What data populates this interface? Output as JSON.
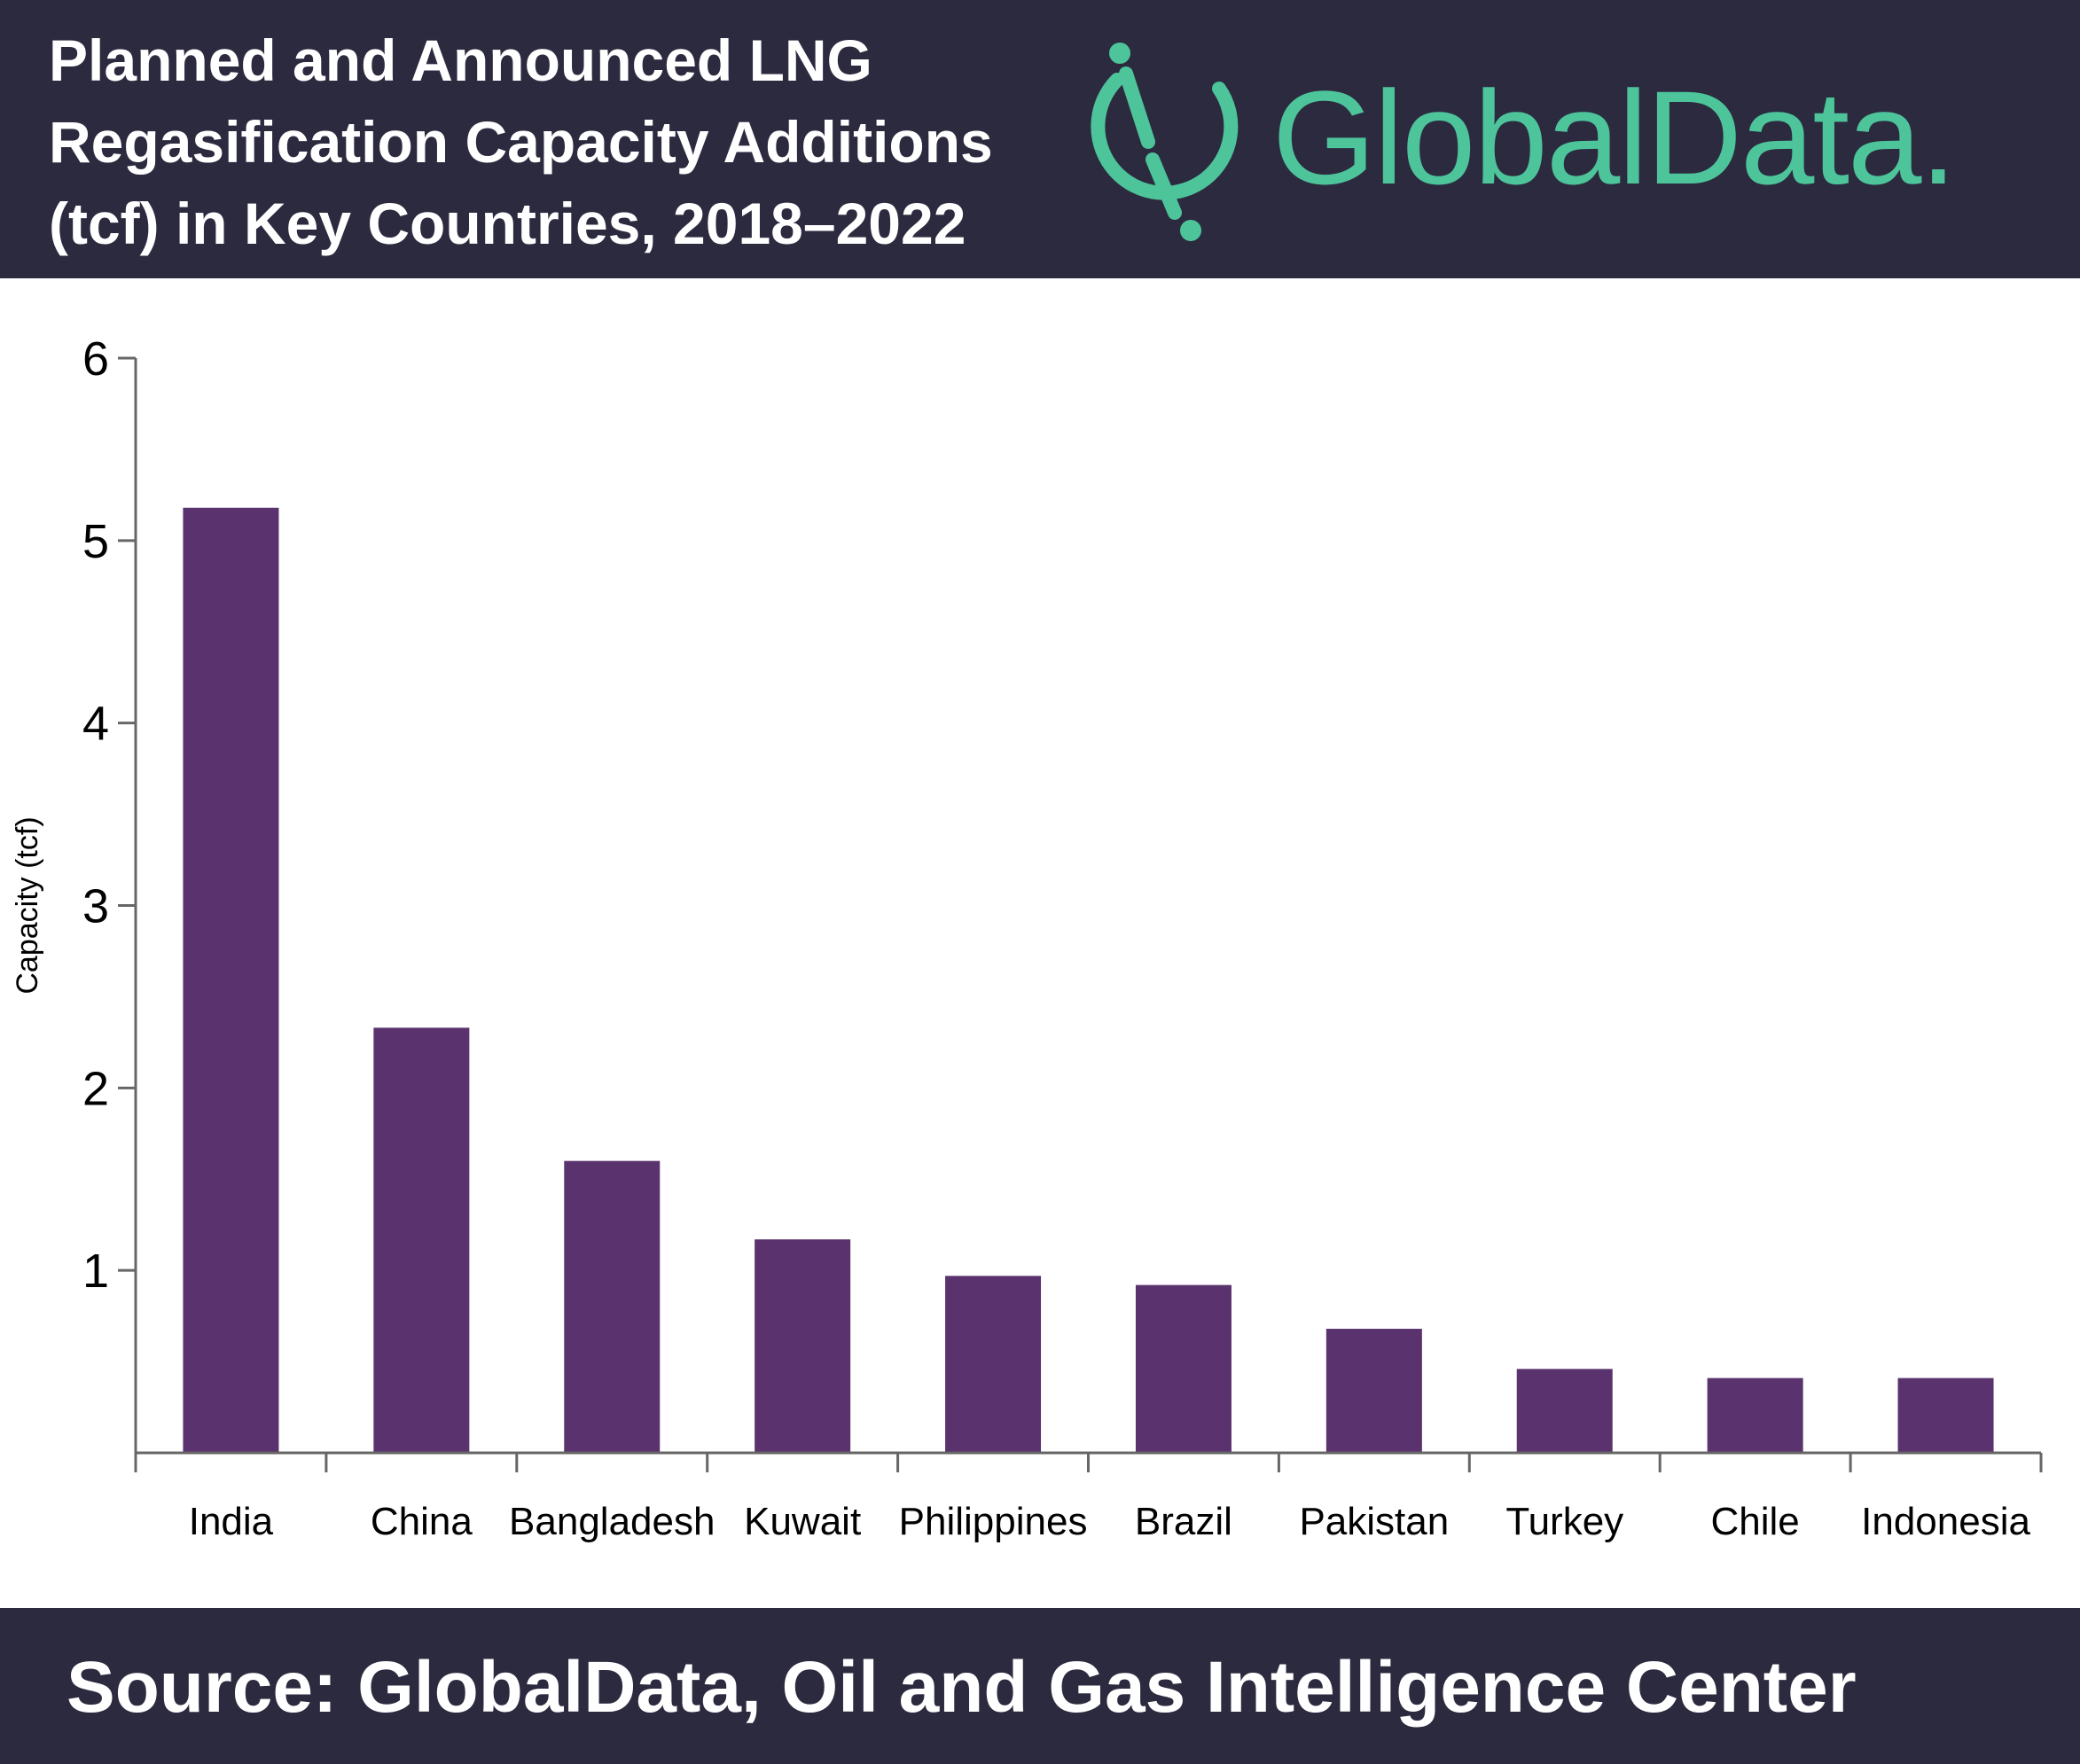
{
  "header": {
    "title_lines": [
      "Planned and Announced LNG",
      "Regasification Capacity Additions",
      "(tcf) in Key Countries, 2018–2022"
    ],
    "logo_text": "GlobalData."
  },
  "footer": {
    "source": "Source: GlobalData, Oil and Gas Intelligence Center"
  },
  "colors": {
    "header_bg": "#2c2a3f",
    "bar": "#5a336e",
    "brand": "#4dc49a",
    "axis": "#666666"
  },
  "chart_data": {
    "type": "bar",
    "title": "Planned and Announced LNG Regasification Capacity Additions (tcf) in Key Countries, 2018–2022",
    "xlabel": "",
    "ylabel": "Capacity (tcf)",
    "categories": [
      "India",
      "China",
      "Bangladesh",
      "Kuwait",
      "Philippines",
      "Brazil",
      "Pakistan",
      "Turkey",
      "Chile",
      "Indonesia"
    ],
    "values": [
      5.18,
      2.33,
      1.6,
      1.17,
      0.97,
      0.92,
      0.68,
      0.46,
      0.41,
      0.41
    ],
    "ylim": [
      0,
      6
    ],
    "yticks": [
      1,
      2,
      3,
      4,
      5,
      6
    ],
    "grid": false,
    "legend": "none"
  }
}
